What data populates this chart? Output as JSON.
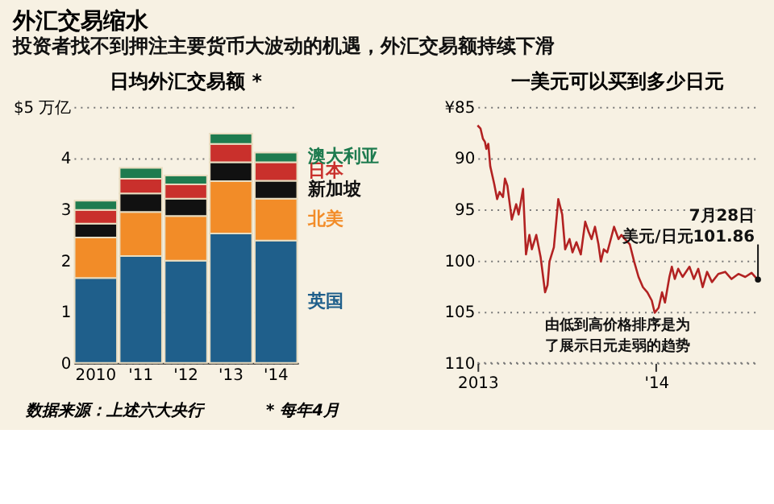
{
  "chart_data": [
    {
      "type": "bar",
      "stacked": true,
      "title": "日均外汇交易额 *",
      "categories": [
        "2010",
        "'11",
        "'12",
        "'13",
        "'14"
      ],
      "series": [
        {
          "name": "英国",
          "color": "#1f5f8b",
          "values": [
            1.66,
            2.09,
            2.0,
            2.53,
            2.39
          ]
        },
        {
          "name": "北美",
          "color": "#f28c28",
          "values": [
            0.79,
            0.86,
            0.87,
            1.02,
            0.82
          ]
        },
        {
          "name": "新加坡",
          "color": "#111111",
          "values": [
            0.27,
            0.36,
            0.34,
            0.37,
            0.35
          ]
        },
        {
          "name": "日本",
          "color": "#c9302c",
          "values": [
            0.27,
            0.29,
            0.28,
            0.36,
            0.36
          ]
        },
        {
          "name": "澳大利亚",
          "color": "#1e7b4f",
          "values": [
            0.18,
            0.21,
            0.17,
            0.2,
            0.19
          ]
        }
      ],
      "ylim": [
        0,
        5
      ],
      "yticks": [
        0,
        1,
        2,
        3,
        4,
        {
          "value": 5,
          "label": "$5 万亿"
        }
      ],
      "grid": "y",
      "legend": "right",
      "annotations": [
        "外汇交易缩水",
        "投资者找不到押注主要货币大波动的机遇，外汇交易额持续下滑",
        "数据来源：上述六大央行",
        "* 每年4月"
      ]
    },
    {
      "type": "line",
      "title": "一美元可以买到多少日元",
      "x": [
        "2013-01-01",
        "2013-01-07",
        "2013-01-12",
        "2013-01-16",
        "2013-01-19",
        "2013-01-23",
        "2013-01-27",
        "2013-02-04",
        "2013-02-10",
        "2013-02-15",
        "2013-02-22",
        "2013-02-26",
        "2013-03-03",
        "2013-03-12",
        "2013-03-21",
        "2013-03-26",
        "2013-04-04",
        "2013-04-10",
        "2013-04-17",
        "2013-04-22",
        "2013-05-01",
        "2013-05-10",
        "2013-05-19",
        "2013-05-24",
        "2013-05-28",
        "2013-06-06",
        "2013-06-15",
        "2013-06-23",
        "2013-06-29",
        "2013-07-08",
        "2013-07-14",
        "2013-07-22",
        "2013-07-31",
        "2013-08-09",
        "2013-08-16",
        "2013-08-22",
        "2013-08-29",
        "2013-09-05",
        "2013-09-10",
        "2013-09-16",
        "2013-09-23",
        "2013-10-07",
        "2013-10-16",
        "2013-10-22",
        "2013-10-29",
        "2013-11-08",
        "2013-11-17",
        "2013-11-26",
        "2013-12-05",
        "2013-12-14",
        "2013-12-23",
        "2013-12-29",
        "2014-01-06",
        "2014-01-13",
        "2014-01-19",
        "2014-01-28",
        "2014-02-02",
        "2014-02-08",
        "2014-02-15",
        "2014-02-24",
        "2014-03-10",
        "2014-03-19",
        "2014-03-28",
        "2014-04-06",
        "2014-04-15",
        "2014-04-25",
        "2014-05-08",
        "2014-05-22",
        "2014-06-04",
        "2014-06-18",
        "2014-07-02",
        "2014-07-15",
        "2014-07-28"
      ],
      "series": [
        {
          "color": "#b22222",
          "values": [
            86.8,
            87.1,
            88.1,
            88.4,
            89.1,
            88.6,
            90.8,
            92.5,
            94.0,
            93.3,
            93.8,
            92.0,
            92.7,
            96.0,
            94.5,
            95.5,
            93.0,
            99.4,
            97.5,
            98.9,
            97.5,
            99.7,
            103.1,
            102.4,
            100.1,
            98.7,
            94.0,
            95.5,
            98.9,
            97.9,
            99.2,
            98.2,
            99.4,
            96.2,
            97.2,
            97.9,
            96.7,
            98.4,
            100.1,
            98.9,
            99.2,
            96.7,
            97.9,
            97.5,
            97.9,
            98.4,
            100.1,
            101.6,
            102.6,
            103.1,
            103.9,
            105.1,
            104.6,
            103.1,
            104.1,
            101.6,
            100.6,
            101.8,
            100.8,
            101.6,
            100.6,
            101.8,
            100.8,
            102.6,
            101.1,
            102.1,
            101.3,
            101.1,
            101.8,
            101.3,
            101.6,
            101.2,
            101.9
          ]
        }
      ],
      "xlim": [
        "2013-01-01",
        "2014-07-28"
      ],
      "xticks": [
        {
          "value": "2013-01-01",
          "label": "2013"
        },
        {
          "value": "2014-01-01",
          "label": "'14"
        }
      ],
      "ylim": [
        110,
        85
      ],
      "yticks": [
        {
          "value": 85,
          "label": "¥85"
        },
        90,
        95,
        100,
        105,
        110
      ],
      "grid": "y",
      "annotations": [
        {
          "text": "7月28日",
          "x": "2014-07-28",
          "y": 101.86
        },
        {
          "text": "美元/日元101.86",
          "x": "2014-07-28",
          "y": 101.86
        },
        "由低到高价格排序是为了展示日元走弱的趋势"
      ]
    }
  ]
}
